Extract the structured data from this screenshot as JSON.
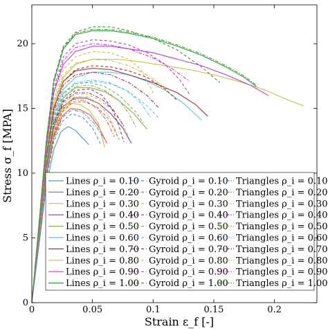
{
  "chart_data": {
    "type": "line",
    "xlabel": "Strain ε_f [-]",
    "ylabel": "Stress σ_f [MPA]",
    "xlim": [
      0,
      0.235
    ],
    "ylim": [
      0,
      23
    ],
    "xticks": [
      "0",
      "0.05",
      "0.1",
      "0.15",
      "0.2"
    ],
    "yticks": [
      "0",
      "5",
      "10",
      "15",
      "20"
    ],
    "xtick_values": [
      0,
      0.05,
      0.1,
      0.15,
      0.2
    ],
    "ytick_values": [
      0,
      5,
      10,
      15,
      20
    ],
    "grid": false,
    "legend_position": "bottom-right",
    "legend_columns": 3,
    "colors": {
      "0.10": "#4f8fd0",
      "0.20": "#d9643a",
      "0.30": "#e6b23c",
      "0.40": "#7e3f8f",
      "0.50": "#86b04b",
      "0.60": "#5cc1e8",
      "0.70": "#a2312f",
      "0.80": "#c6c23b",
      "0.90": "#c33ad1",
      "1.00": "#3a9a3a"
    },
    "series": [
      {
        "name": "Lines ρ_i = 0.10",
        "pattern": "Lines",
        "rho": "0.10",
        "style": "solid",
        "x": [
          0,
          0.006,
          0.012,
          0.018,
          0.024,
          0.03,
          0.036,
          0.042,
          0.047
        ],
        "y": [
          0,
          4.5,
          9,
          11.8,
          13.2,
          13.6,
          13.3,
          12.7,
          12.2
        ]
      },
      {
        "name": "Lines ρ_i = 0.20",
        "pattern": "Lines",
        "rho": "0.20",
        "style": "solid",
        "x": [
          0,
          0.006,
          0.012,
          0.018,
          0.025,
          0.032,
          0.04,
          0.048,
          0.055,
          0.062
        ],
        "y": [
          0,
          5,
          9.8,
          12.8,
          14.4,
          15,
          14.9,
          14.5,
          13.6,
          12.3
        ]
      },
      {
        "name": "Lines ρ_i = 0.30",
        "pattern": "Lines",
        "rho": "0.30",
        "style": "solid",
        "x": [
          0,
          0.006,
          0.012,
          0.018,
          0.025,
          0.032,
          0.04,
          0.048,
          0.055,
          0.06
        ],
        "y": [
          0,
          5.2,
          10,
          13,
          14.8,
          15.4,
          15.3,
          14.8,
          13.8,
          12.0
        ]
      },
      {
        "name": "Lines ρ_i = 0.40",
        "pattern": "Lines",
        "rho": "0.40",
        "style": "solid",
        "x": [
          0,
          0.006,
          0.012,
          0.018,
          0.025,
          0.035,
          0.045,
          0.055,
          0.065,
          0.075,
          0.082
        ],
        "y": [
          0,
          5.3,
          10.3,
          13.5,
          15.1,
          15.8,
          15.8,
          15.4,
          14.6,
          13.5,
          12.3
        ]
      },
      {
        "name": "Lines ρ_i = 0.50",
        "pattern": "Lines",
        "rho": "0.50",
        "style": "solid",
        "x": [
          0,
          0.006,
          0.012,
          0.018,
          0.026,
          0.036,
          0.048,
          0.06,
          0.072,
          0.084,
          0.095
        ],
        "y": [
          0,
          5.4,
          10.6,
          13.9,
          15.8,
          16.6,
          16.6,
          16.3,
          15.6,
          14.6,
          13.4
        ]
      },
      {
        "name": "Lines ρ_i = 0.60",
        "pattern": "Lines",
        "rho": "0.60",
        "style": "solid",
        "x": [
          0,
          0.006,
          0.012,
          0.018,
          0.026,
          0.036,
          0.05,
          0.065,
          0.08,
          0.095,
          0.11,
          0.125,
          0.14
        ],
        "y": [
          0,
          5.6,
          11,
          14.6,
          16.5,
          17.4,
          17.8,
          17.8,
          17.6,
          17.1,
          16.4,
          15.4,
          14.1
        ]
      },
      {
        "name": "Lines ρ_i = 0.70",
        "pattern": "Lines",
        "rho": "0.70",
        "style": "solid",
        "x": [
          0,
          0.006,
          0.012,
          0.018,
          0.026,
          0.036,
          0.05,
          0.065,
          0.08,
          0.1,
          0.12,
          0.135,
          0.145
        ],
        "y": [
          0,
          5.7,
          11.3,
          15,
          17.1,
          17.9,
          18.1,
          18,
          17.6,
          17,
          16.2,
          15.3,
          14.4
        ]
      },
      {
        "name": "Lines ρ_i = 0.80",
        "pattern": "Lines",
        "rho": "0.80",
        "style": "solid",
        "x": [
          0,
          0.006,
          0.012,
          0.018,
          0.026,
          0.036,
          0.05,
          0.07,
          0.09,
          0.11,
          0.13,
          0.15,
          0.17,
          0.19,
          0.21,
          0.224
        ],
        "y": [
          0,
          5.8,
          11.5,
          15.3,
          17.4,
          18.4,
          18.8,
          18.8,
          18.6,
          18.3,
          18,
          17.6,
          17.1,
          16.5,
          15.7,
          15.2
        ]
      },
      {
        "name": "Lines ρ_i = 0.90",
        "pattern": "Lines",
        "rho": "0.90",
        "style": "solid",
        "x": [
          0,
          0.006,
          0.012,
          0.018,
          0.026,
          0.036,
          0.05,
          0.065,
          0.08,
          0.1,
          0.12,
          0.14,
          0.16,
          0.18,
          0.195
        ],
        "y": [
          0,
          6,
          12,
          16.2,
          18.4,
          19.4,
          19.8,
          19.8,
          19.6,
          19.3,
          18.8,
          18.3,
          17.6,
          16.8,
          16.0
        ]
      },
      {
        "name": "Lines ρ_i = 1.00",
        "pattern": "Lines",
        "rho": "1.00",
        "style": "solid",
        "x": [
          0,
          0.006,
          0.012,
          0.018,
          0.026,
          0.036,
          0.05,
          0.065,
          0.08,
          0.1,
          0.12,
          0.14,
          0.16,
          0.175,
          0.185
        ],
        "y": [
          0,
          6.2,
          12.5,
          17,
          19.6,
          20.7,
          21,
          21,
          20.8,
          20.4,
          19.8,
          19.1,
          18.2,
          17.4,
          16.7
        ]
      },
      {
        "name": "Gyroid ρ_i = 0.10",
        "pattern": "Gyroid",
        "rho": "0.10",
        "style": "dashed",
        "x": [
          0,
          0.006,
          0.012,
          0.018,
          0.025,
          0.033,
          0.042,
          0.05,
          0.057
        ],
        "y": [
          0,
          4.8,
          9.5,
          12.4,
          14,
          14.6,
          14.3,
          13.5,
          12.2
        ]
      },
      {
        "name": "Gyroid ρ_i = 0.20",
        "pattern": "Gyroid",
        "rho": "0.20",
        "style": "dashed",
        "x": [
          0,
          0.006,
          0.012,
          0.018,
          0.025,
          0.034,
          0.044,
          0.054,
          0.064,
          0.072
        ],
        "y": [
          0,
          5,
          9.8,
          12.9,
          14.7,
          15.5,
          15.5,
          15.1,
          14.1,
          12.6
        ]
      },
      {
        "name": "Gyroid ρ_i = 0.30",
        "pattern": "Gyroid",
        "rho": "0.30",
        "style": "dashed",
        "x": [
          0,
          0.006,
          0.012,
          0.018,
          0.026,
          0.035,
          0.045,
          0.055,
          0.065,
          0.075,
          0.08
        ],
        "y": [
          0,
          5.2,
          10.2,
          13.4,
          15.3,
          16.1,
          16.1,
          15.7,
          15,
          13.8,
          12.8
        ]
      },
      {
        "name": "Gyroid ρ_i = 0.40",
        "pattern": "Gyroid",
        "rho": "0.40",
        "style": "dashed",
        "x": [
          0,
          0.006,
          0.012,
          0.018,
          0.026,
          0.036,
          0.048,
          0.058,
          0.066,
          0.072,
          0.076
        ],
        "y": [
          0,
          5.3,
          10.5,
          13.8,
          15.6,
          16.4,
          16.5,
          16,
          15,
          13.6,
          12.4
        ]
      },
      {
        "name": "Gyroid ρ_i = 0.50",
        "pattern": "Gyroid",
        "rho": "0.50",
        "style": "dashed",
        "x": [
          0,
          0.006,
          0.012,
          0.018,
          0.026,
          0.036,
          0.048,
          0.06,
          0.072,
          0.085,
          0.092
        ],
        "y": [
          0,
          5.4,
          10.8,
          14.2,
          16.1,
          16.9,
          17,
          16.7,
          16,
          14.8,
          13.9
        ]
      },
      {
        "name": "Gyroid ρ_i = 0.60",
        "pattern": "Gyroid",
        "rho": "0.60",
        "style": "dashed",
        "x": [
          0,
          0.006,
          0.012,
          0.018,
          0.026,
          0.036,
          0.05,
          0.065,
          0.08,
          0.095,
          0.105
        ],
        "y": [
          0,
          5.5,
          11,
          14.4,
          16.2,
          16.9,
          17.1,
          16.9,
          16.3,
          15.2,
          14.2
        ]
      },
      {
        "name": "Gyroid ρ_i = 0.70",
        "pattern": "Gyroid",
        "rho": "0.70",
        "style": "dashed",
        "x": [
          0,
          0.006,
          0.012,
          0.018,
          0.026,
          0.036,
          0.05,
          0.065,
          0.08,
          0.095,
          0.11,
          0.12
        ],
        "y": [
          0,
          5.7,
          11.3,
          15,
          17.1,
          18,
          18.3,
          18.2,
          17.9,
          17.4,
          16.5,
          15.6
        ]
      },
      {
        "name": "Gyroid ρ_i = 0.80",
        "pattern": "Gyroid",
        "rho": "0.80",
        "style": "dashed",
        "x": [
          0,
          0.006,
          0.012,
          0.018,
          0.026,
          0.036,
          0.05,
          0.065,
          0.08,
          0.09,
          0.1
        ],
        "y": [
          0,
          5.9,
          11.8,
          15.8,
          18,
          19,
          19.4,
          19.3,
          18.8,
          18,
          16.2
        ]
      },
      {
        "name": "Gyroid ρ_i = 0.90",
        "pattern": "Gyroid",
        "rho": "0.90",
        "style": "dashed",
        "x": [
          0,
          0.006,
          0.012,
          0.018,
          0.026,
          0.036,
          0.05,
          0.065,
          0.08,
          0.095,
          0.11,
          0.122,
          0.13
        ],
        "y": [
          0,
          6,
          12.2,
          16.6,
          19,
          20,
          20.3,
          20.2,
          19.9,
          19.3,
          18.4,
          17.2,
          16.1
        ]
      },
      {
        "name": "Gyroid ρ_i = 1.00",
        "pattern": "Gyroid",
        "rho": "1.00",
        "style": "dashed",
        "x": [
          0,
          0.006,
          0.012,
          0.018,
          0.026,
          0.036,
          0.05,
          0.065,
          0.08,
          0.1,
          0.12,
          0.14,
          0.155
        ],
        "y": [
          0,
          6.2,
          12.6,
          17.2,
          19.8,
          20.9,
          21.3,
          21.3,
          21,
          20.4,
          19.5,
          18.2,
          17.0
        ]
      },
      {
        "name": "Triangles ρ_i = 0.10",
        "pattern": "Triangles",
        "rho": "0.10",
        "style": "dashdot",
        "x": [
          0,
          0.006,
          0.012,
          0.018,
          0.025,
          0.033,
          0.042,
          0.052,
          0.06
        ],
        "y": [
          0,
          4.8,
          9.6,
          12.6,
          14.3,
          14.9,
          14.7,
          13.8,
          12.6
        ]
      },
      {
        "name": "Triangles ρ_i = 0.20",
        "pattern": "Triangles",
        "rho": "0.20",
        "style": "dashdot",
        "x": [
          0,
          0.006,
          0.012,
          0.018,
          0.025,
          0.034,
          0.044,
          0.054,
          0.062,
          0.068
        ],
        "y": [
          0,
          5,
          10,
          13.1,
          14.9,
          15.7,
          15.6,
          15,
          14,
          12.8
        ]
      },
      {
        "name": "Triangles ρ_i = 0.30",
        "pattern": "Triangles",
        "rho": "0.30",
        "style": "dashdot",
        "x": [
          0,
          0.006,
          0.012,
          0.018,
          0.026,
          0.035,
          0.046,
          0.056,
          0.064,
          0.07
        ],
        "y": [
          0,
          5.1,
          10.1,
          13.3,
          15.1,
          15.9,
          15.9,
          15.3,
          14.3,
          13.1
        ]
      },
      {
        "name": "Triangles ρ_i = 0.40",
        "pattern": "Triangles",
        "rho": "0.40",
        "style": "dashdot",
        "x": [
          0,
          0.006,
          0.012,
          0.018,
          0.026,
          0.036,
          0.047,
          0.058,
          0.068,
          0.076
        ],
        "y": [
          0,
          5.3,
          10.4,
          13.7,
          15.5,
          16.2,
          16.2,
          15.7,
          14.8,
          13.6
        ]
      },
      {
        "name": "Triangles ρ_i = 0.50",
        "pattern": "Triangles",
        "rho": "0.50",
        "style": "dashdot",
        "x": [
          0,
          0.006,
          0.012,
          0.018,
          0.026,
          0.036,
          0.048,
          0.06,
          0.072,
          0.08,
          0.086
        ],
        "y": [
          0,
          5.4,
          10.7,
          14,
          15.9,
          16.7,
          16.8,
          16.4,
          15.6,
          14.6,
          13.5
        ]
      },
      {
        "name": "Triangles ρ_i = 0.60",
        "pattern": "Triangles",
        "rho": "0.60",
        "style": "dashdot",
        "x": [
          0,
          0.006,
          0.012,
          0.018,
          0.026,
          0.036,
          0.05,
          0.064,
          0.078,
          0.09,
          0.098
        ],
        "y": [
          0,
          5.5,
          10.9,
          14.3,
          16.2,
          17,
          17.2,
          17,
          16.4,
          15.4,
          14.3
        ]
      },
      {
        "name": "Triangles ρ_i = 0.70",
        "pattern": "Triangles",
        "rho": "0.70",
        "style": "dashdot",
        "x": [
          0,
          0.006,
          0.012,
          0.018,
          0.026,
          0.036,
          0.05,
          0.065,
          0.08,
          0.095,
          0.105
        ],
        "y": [
          0,
          5.6,
          11.2,
          14.8,
          16.8,
          17.6,
          17.8,
          17.6,
          17,
          16,
          15.0
        ]
      },
      {
        "name": "Triangles ρ_i = 0.80",
        "pattern": "Triangles",
        "rho": "0.80",
        "style": "dashdot",
        "x": [
          0,
          0.006,
          0.012,
          0.018,
          0.026,
          0.036,
          0.05,
          0.065,
          0.08,
          0.095,
          0.11
        ],
        "y": [
          0,
          5.8,
          11.6,
          15.5,
          17.6,
          18.5,
          18.8,
          18.7,
          18.3,
          17.6,
          16.6
        ]
      },
      {
        "name": "Triangles ρ_i = 0.90",
        "pattern": "Triangles",
        "rho": "0.90",
        "style": "dashdot",
        "x": [
          0,
          0.006,
          0.012,
          0.018,
          0.026,
          0.036,
          0.05,
          0.065,
          0.08,
          0.1,
          0.115,
          0.13
        ],
        "y": [
          0,
          6,
          12,
          16.3,
          18.7,
          19.7,
          20,
          19.9,
          19.6,
          18.9,
          18.1,
          17.1
        ]
      },
      {
        "name": "Triangles ρ_i = 1.00",
        "pattern": "Triangles",
        "rho": "1.00",
        "style": "dashdot",
        "x": [
          0,
          0.006,
          0.012,
          0.018,
          0.026,
          0.036,
          0.05,
          0.065,
          0.08,
          0.1,
          0.12,
          0.14,
          0.16,
          0.175,
          0.185
        ],
        "y": [
          0,
          6.2,
          12.5,
          17.1,
          19.7,
          20.8,
          21.1,
          21.1,
          20.9,
          20.5,
          19.9,
          19.2,
          18.3,
          17.5,
          16.8
        ]
      }
    ]
  }
}
